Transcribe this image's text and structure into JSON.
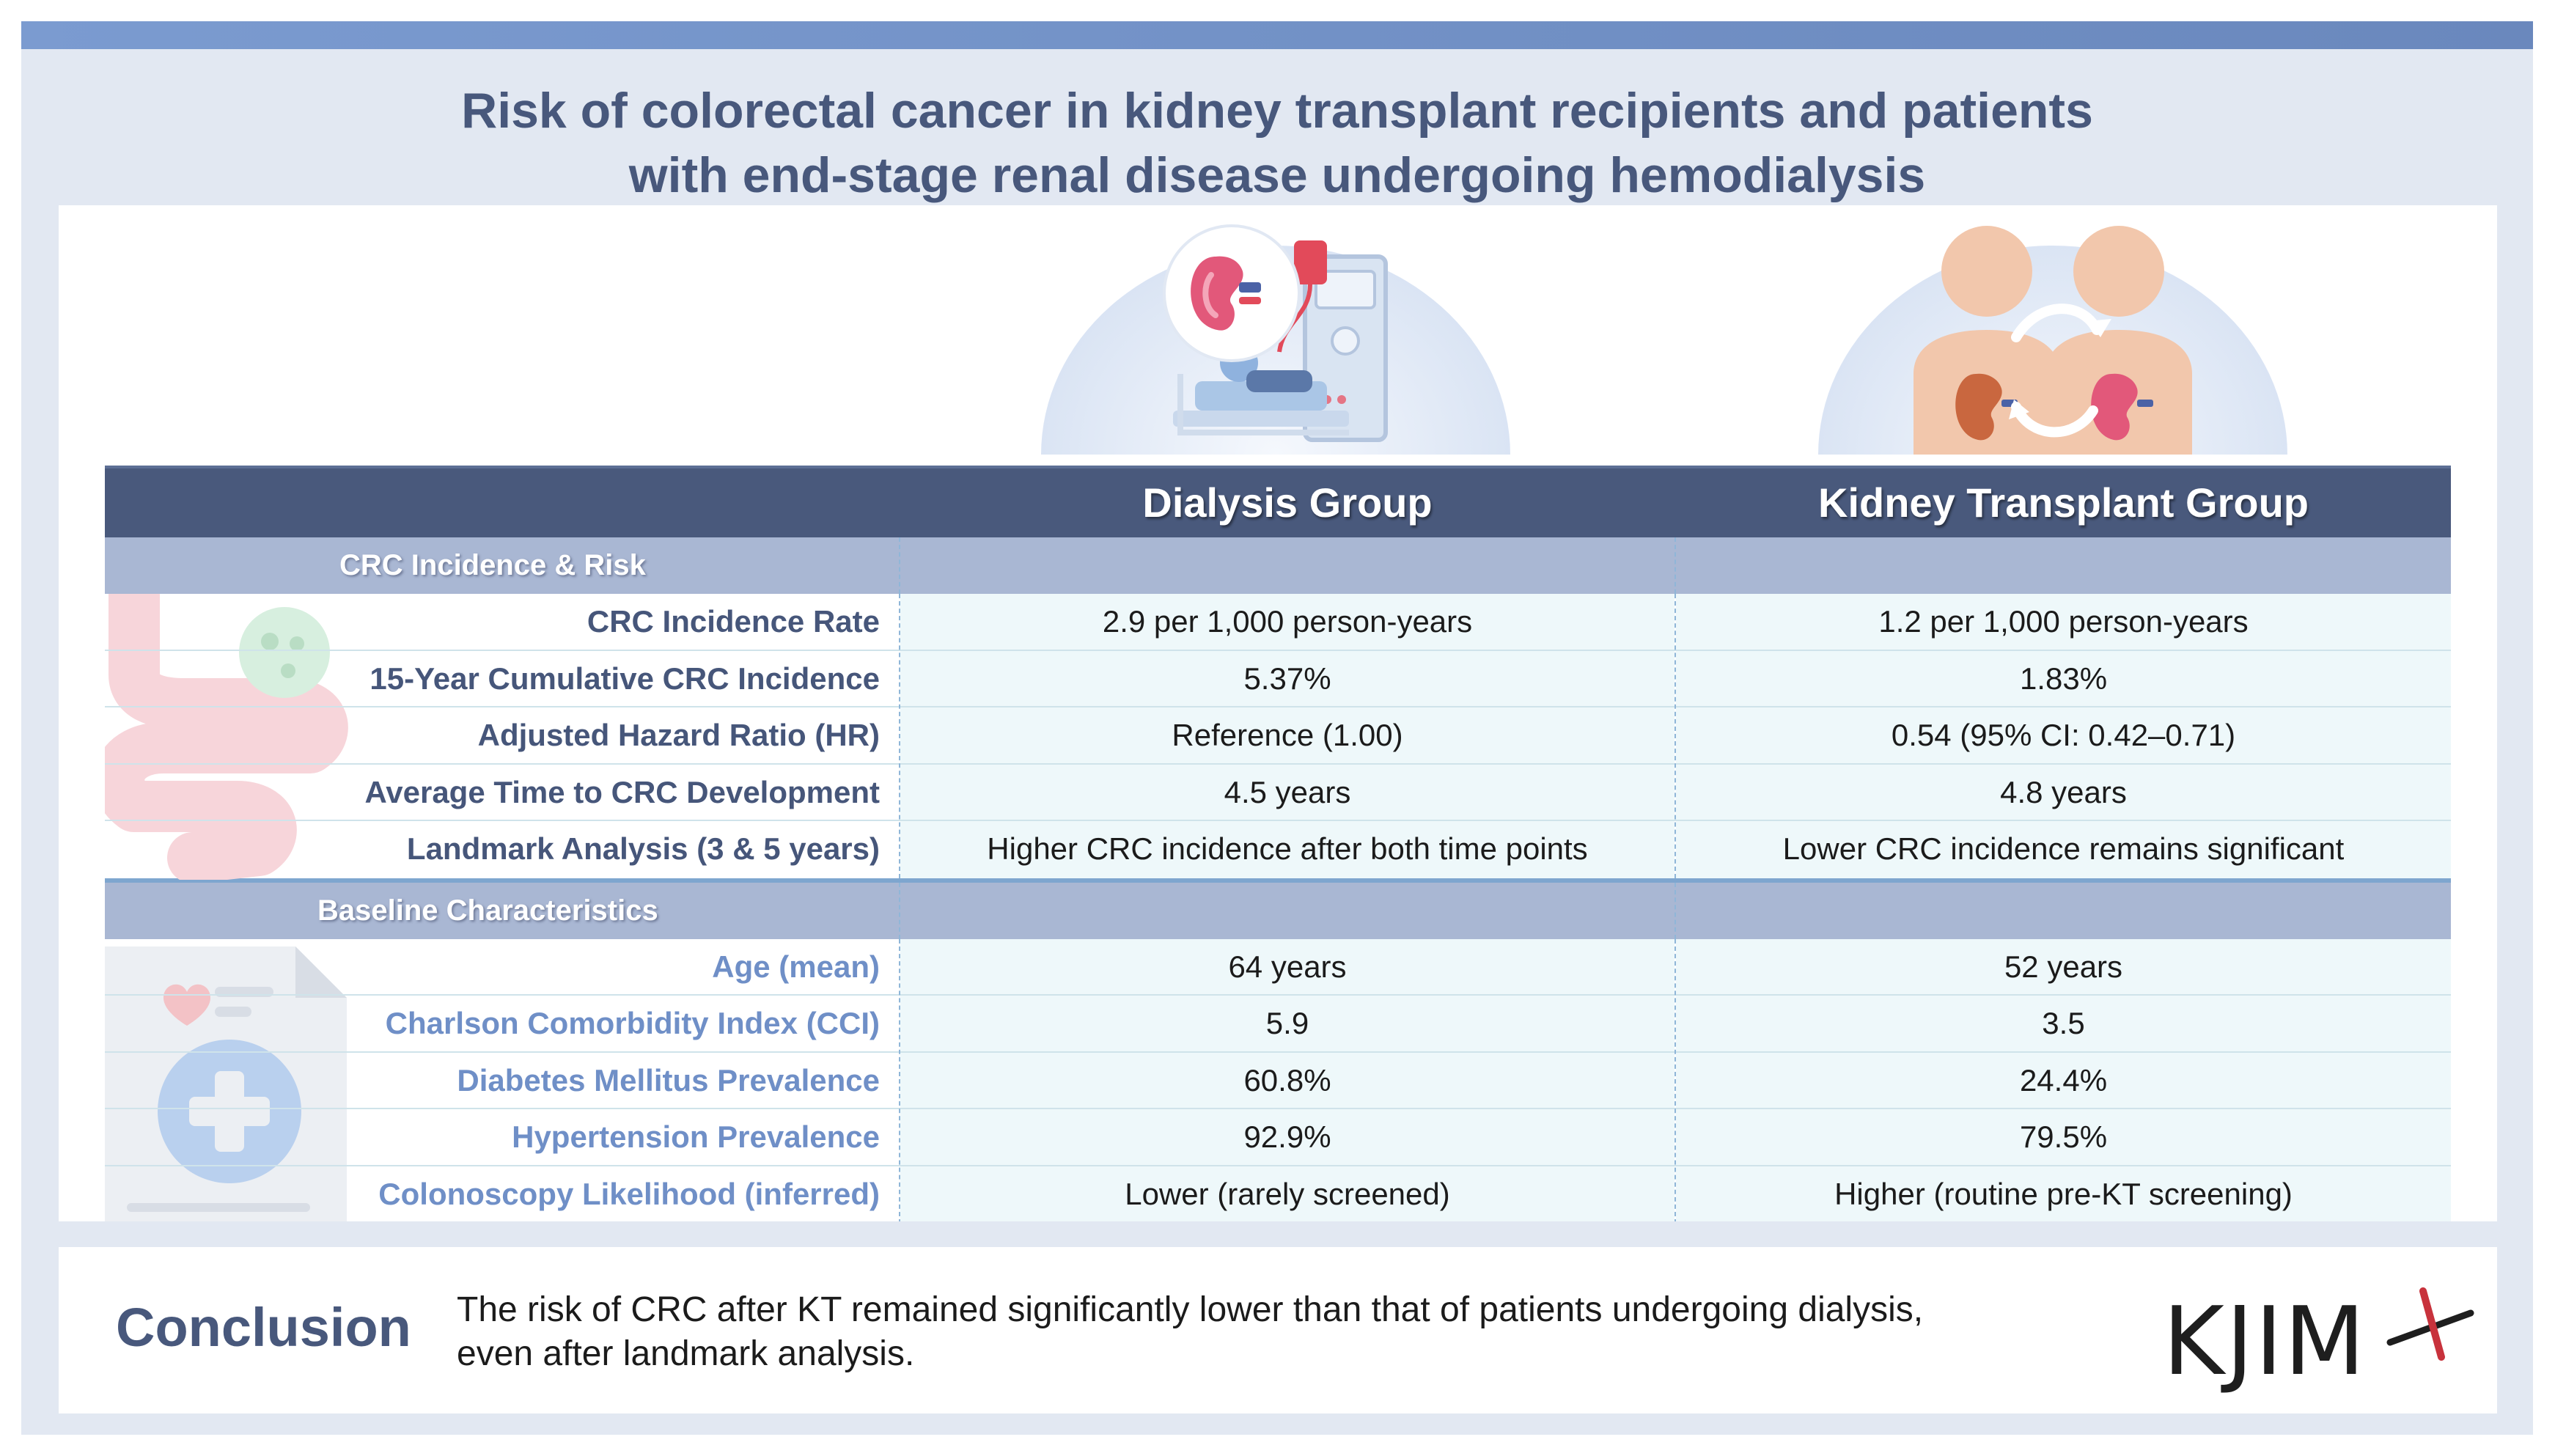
{
  "title": {
    "line1": "Risk of colorectal cancer in kidney transplant recipients and patients",
    "line2": "with end-stage renal disease undergoing hemodialysis"
  },
  "table": {
    "header": {
      "col2": "Dialysis Group",
      "col3": "Kidney Transplant Group"
    },
    "sections": [
      {
        "label": "CRC Incidence & Risk",
        "rows": [
          {
            "label": "CRC Incidence Rate",
            "dialysis": "2.9 per 1,000 person-years",
            "kt": "1.2 per 1,000 person-years"
          },
          {
            "label": "15-Year Cumulative CRC Incidence",
            "dialysis": "5.37%",
            "kt": "1.83%"
          },
          {
            "label": "Adjusted Hazard Ratio (HR)",
            "dialysis": "Reference (1.00)",
            "kt": "0.54 (95% CI: 0.42–0.71)"
          },
          {
            "label": "Average Time to CRC Development",
            "dialysis": "4.5 years",
            "kt": "4.8 years"
          },
          {
            "label": "Landmark Analysis (3 & 5 years)",
            "dialysis": "Higher CRC incidence after both time points",
            "kt": "Lower CRC incidence remains significant"
          }
        ]
      },
      {
        "label": "Baseline Characteristics",
        "rows": [
          {
            "label": "Age (mean)",
            "dialysis": "64 years",
            "kt": "52 years"
          },
          {
            "label": "Charlson Comorbidity Index (CCI)",
            "dialysis": "5.9",
            "kt": "3.5"
          },
          {
            "label": "Diabetes Mellitus Prevalence",
            "dialysis": "60.8%",
            "kt": "24.4%"
          },
          {
            "label": "Hypertension Prevalence",
            "dialysis": "92.9%",
            "kt": "79.5%"
          },
          {
            "label": "Colonoscopy Likelihood (inferred)",
            "dialysis": "Lower (rarely screened)",
            "kt": "Higher (routine pre-KT screening)"
          }
        ]
      }
    ]
  },
  "conclusion": {
    "label": "Conclusion",
    "line1": "The risk of CRC after KT remained significantly lower than that of patients undergoing dialysis,",
    "line2": "even after landmark analysis."
  },
  "logo": {
    "text": "KJIM"
  },
  "icons": {
    "dialysis": "dialysis-machine-icon",
    "transplant": "kidney-transplant-icon",
    "intestine": "intestine-icon",
    "record": "medical-record-icon"
  },
  "colors": {
    "title": "#48587c",
    "header_bg": "#49597c",
    "section_bg": "#a9b7d3",
    "cell_bg": "#eef8fa",
    "logo_accent": "#c8323c"
  }
}
